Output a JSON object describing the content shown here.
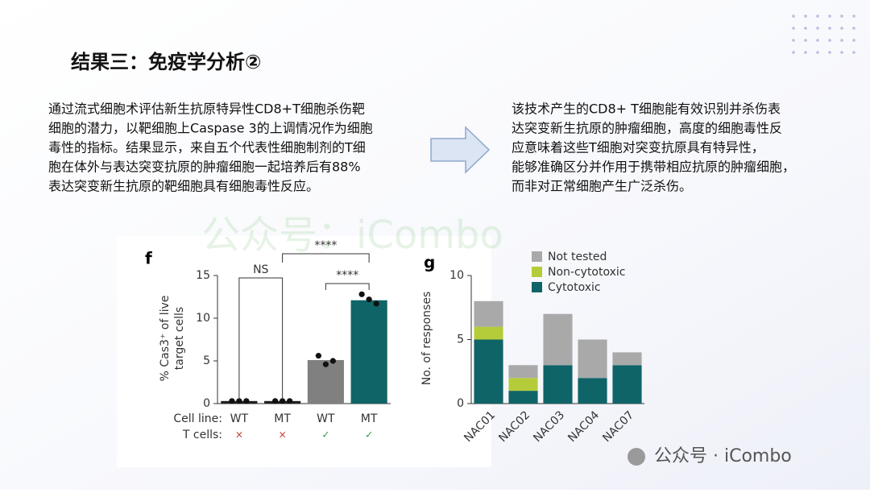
{
  "slide": {
    "title": "结果三：免疫学分析②",
    "left_text": [
      "通过流式细胞术评估新生抗原特异性CD8+T细胞杀伤靶",
      "细胞的潜力，以靶细胞上Caspase 3的上调情况作为细胞",
      "毒性的指标。结果显示，来自五个代表性细胞制剂的T细",
      "胞在体外与表达突变抗原的肿瘤细胞一起培养后有88%",
      "表达突变新生抗原的靶细胞具有细胞毒性反应。"
    ],
    "right_text": [
      "该技术产生的CD8+ T细胞能有效识别并杀伤表",
      "达突变新生抗原的肿瘤细胞，高度的细胞毒性反",
      "应意味着这些T细胞对突变抗原具有特异性，",
      "能够准确区分并作用于携带相应抗原的肿瘤细胞，",
      "而非对正常细胞产生广泛杀伤。"
    ],
    "watermark": "公众号：iCombo",
    "footer_watermark": "公众号 · iCombo"
  },
  "chart_data": [
    {
      "type": "bar",
      "panel": "f",
      "ylabel": [
        "% Cas3⁺ of live",
        "target cells"
      ],
      "row_labels": [
        "Cell line:",
        "T cells:"
      ],
      "categories": [
        "WT",
        "MT",
        "WT",
        "MT"
      ],
      "t_cells": [
        "×",
        "×",
        "✓",
        "✓"
      ],
      "values": [
        0.3,
        0.3,
        5.1,
        12.1
      ],
      "colors": [
        "#222222",
        "#222222",
        "#808080",
        "#0f6468"
      ],
      "points": [
        [
          0.3,
          0.3,
          0.3
        ],
        [
          0.3,
          0.3,
          0.3
        ],
        [
          5.6,
          4.6,
          5.0
        ],
        [
          12.8,
          12.2,
          11.7
        ]
      ],
      "annotations": [
        "NS",
        "****",
        "****"
      ],
      "ylim": [
        0,
        15
      ],
      "yticks": [
        0,
        5,
        10,
        15
      ]
    },
    {
      "type": "stacked_bar",
      "panel": "g",
      "ylabel": "No. of responses",
      "categories": [
        "NAC01",
        "NAC02",
        "NAC03",
        "NAC04",
        "NAC07"
      ],
      "series": [
        {
          "name": "Not tested",
          "color": "#a9a9a9",
          "values": [
            2,
            1,
            4,
            3,
            1
          ]
        },
        {
          "name": "Non-cytotoxic",
          "color": "#b5cc3a",
          "values": [
            1,
            1,
            0,
            0,
            0
          ]
        },
        {
          "name": "Cytotoxic",
          "color": "#0f6468",
          "values": [
            5,
            1,
            3,
            2,
            3
          ]
        }
      ],
      "ylim": [
        0,
        10
      ],
      "yticks": [
        0,
        5,
        10
      ]
    }
  ]
}
